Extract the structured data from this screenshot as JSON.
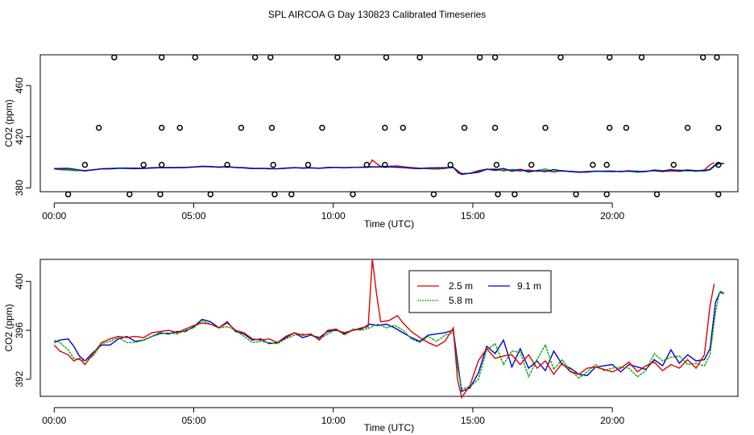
{
  "page_title": "SPL AIRCOA G  Day 130823  Calibrated Timeseries",
  "colors": {
    "red": "#dd0000",
    "green": "#00aa00",
    "blue": "#0000cc"
  },
  "chart_data": [
    {
      "type": "line",
      "name": "top-panel",
      "xlabel": "Time (UTC)",
      "ylabel": "CO2 (ppm)",
      "xlim": [
        -0.5,
        24.5
      ],
      "ylim": [
        377,
        484
      ],
      "xticks": [
        {
          "v": 0,
          "label": "00:00"
        },
        {
          "v": 5,
          "label": "05:00"
        },
        {
          "v": 10,
          "label": "10:00"
        },
        {
          "v": 15,
          "label": "15:00"
        },
        {
          "v": 20,
          "label": "20:00"
        }
      ],
      "yticks": [
        {
          "v": 380,
          "label": "380"
        },
        {
          "v": 420,
          "label": "420"
        },
        {
          "v": 460,
          "label": "460"
        }
      ],
      "circle_levels": [
        375,
        398,
        427,
        482
      ],
      "circle_points": [
        [
          0.5,
          375
        ],
        [
          2.7,
          375
        ],
        [
          3.8,
          375
        ],
        [
          5.6,
          375
        ],
        [
          7.9,
          375
        ],
        [
          8.5,
          375
        ],
        [
          10.7,
          375
        ],
        [
          13.6,
          375
        ],
        [
          15.9,
          375
        ],
        [
          16.5,
          375
        ],
        [
          18.7,
          375
        ],
        [
          19.8,
          375
        ],
        [
          21.6,
          375
        ],
        [
          23.8,
          375
        ],
        [
          1.1,
          398
        ],
        [
          3.2,
          398
        ],
        [
          3.85,
          398
        ],
        [
          6.2,
          398
        ],
        [
          7.85,
          398
        ],
        [
          9.1,
          398
        ],
        [
          11.2,
          398
        ],
        [
          11.85,
          398
        ],
        [
          14.2,
          398
        ],
        [
          15.85,
          398
        ],
        [
          17.1,
          398
        ],
        [
          19.3,
          398
        ],
        [
          19.8,
          398
        ],
        [
          22.2,
          398
        ],
        [
          23.8,
          398
        ],
        [
          1.6,
          427
        ],
        [
          3.85,
          427
        ],
        [
          4.5,
          427
        ],
        [
          6.7,
          427
        ],
        [
          7.8,
          427
        ],
        [
          9.6,
          427
        ],
        [
          11.85,
          427
        ],
        [
          12.5,
          427
        ],
        [
          14.7,
          427
        ],
        [
          15.8,
          427
        ],
        [
          17.6,
          427
        ],
        [
          19.9,
          427
        ],
        [
          20.5,
          427
        ],
        [
          22.7,
          427
        ],
        [
          23.8,
          427
        ],
        [
          2.15,
          482
        ],
        [
          3.85,
          482
        ],
        [
          5.05,
          482
        ],
        [
          7.2,
          482
        ],
        [
          7.75,
          482
        ],
        [
          10.15,
          482
        ],
        [
          11.9,
          482
        ],
        [
          13.1,
          482
        ],
        [
          15.25,
          482
        ],
        [
          15.8,
          482
        ],
        [
          18.15,
          482
        ],
        [
          19.9,
          482
        ],
        [
          21.05,
          482
        ],
        [
          23.25,
          482
        ],
        [
          23.75,
          482
        ]
      ],
      "series": [
        {
          "name": "2.5 m",
          "color": "red"
        },
        {
          "name": "5.8 m",
          "color": "green"
        },
        {
          "name": "9.1 m",
          "color": "blue"
        }
      ]
    },
    {
      "type": "line",
      "name": "bottom-panel",
      "xlabel": "Time (UTC)",
      "ylabel": "CO2 (ppm)",
      "xlim": [
        -0.5,
        24.5
      ],
      "ylim": [
        390.6,
        401.8
      ],
      "xticks": [
        {
          "v": 0,
          "label": "00:00"
        },
        {
          "v": 5,
          "label": "05:00"
        },
        {
          "v": 10,
          "label": "10:00"
        },
        {
          "v": 15,
          "label": "15:00"
        },
        {
          "v": 20,
          "label": "20:00"
        }
      ],
      "yticks": [
        {
          "v": 392,
          "label": "392"
        },
        {
          "v": 396,
          "label": "396"
        },
        {
          "v": 400,
          "label": "400"
        }
      ],
      "legend": {
        "placement": "top-center",
        "entries": [
          {
            "label": "2.5 m",
            "color": "red"
          },
          {
            "label": "9.1 m",
            "color": "blue"
          },
          {
            "label": "5.8 m",
            "color": "green"
          }
        ]
      },
      "series": [
        {
          "name": "9.1 m",
          "color": "blue",
          "x": [
            0,
            0.2,
            0.5,
            0.7,
            0.9,
            1.1,
            1.4,
            1.7,
            2,
            2.3,
            2.6,
            2.9,
            3.2,
            3.5,
            3.8,
            4.1,
            4.4,
            4.7,
            5,
            5.3,
            5.6,
            5.9,
            6.2,
            6.5,
            6.8,
            7.1,
            7.4,
            7.7,
            8,
            8.3,
            8.6,
            8.9,
            9.2,
            9.5,
            9.8,
            10.1,
            10.4,
            10.7,
            11,
            11.3,
            11.6,
            11.9,
            12.2,
            12.5,
            12.8,
            13.1,
            13.4,
            13.7,
            14,
            14.3,
            14.45,
            14.6,
            14.9,
            15.2,
            15.5,
            15.8,
            16.1,
            16.4,
            16.7,
            17,
            17.3,
            17.6,
            17.9,
            18.2,
            18.5,
            18.8,
            19.1,
            19.4,
            19.7,
            20,
            20.3,
            20.6,
            20.9,
            21.2,
            21.5,
            21.8,
            22.1,
            22.4,
            22.7,
            23,
            23.3,
            23.5,
            23.7,
            23.85,
            24
          ],
          "y": [
            395.0,
            395.2,
            395.3,
            394.7,
            393.9,
            393.5,
            394.2,
            394.8,
            394.8,
            395.3,
            395.5,
            395.1,
            395.2,
            395.5,
            395.8,
            395.7,
            395.9,
            395.9,
            396.3,
            396.9,
            396.7,
            396.2,
            396.7,
            395.9,
            395.7,
            395.2,
            395.3,
            394.9,
            395.0,
            395.4,
            395.8,
            395.4,
            395.6,
            395.4,
            395.9,
            396.0,
            395.8,
            396.0,
            396.1,
            396.5,
            396.4,
            396.5,
            396.2,
            395.8,
            395.4,
            395.1,
            395.6,
            395.7,
            395.8,
            396.0,
            393.5,
            391.0,
            391.3,
            392.5,
            394.7,
            394.1,
            395.2,
            393.0,
            394.5,
            392.9,
            393.5,
            392.7,
            394.3,
            393.2,
            392.9,
            392.4,
            392.3,
            393.0,
            393.1,
            393.2,
            392.6,
            393.2,
            393.0,
            392.8,
            393.6,
            393.1,
            394.4,
            393.3,
            394.0,
            393.5,
            393.6,
            394.5,
            398.3,
            399.1,
            399.0
          ]
        },
        {
          "name": "5.8 m",
          "color": "green",
          "x": [
            0,
            0.2,
            0.5,
            0.7,
            0.9,
            1.1,
            1.4,
            1.7,
            2,
            2.3,
            2.6,
            2.9,
            3.2,
            3.5,
            3.8,
            4.1,
            4.4,
            4.7,
            5,
            5.3,
            5.6,
            5.9,
            6.2,
            6.5,
            6.8,
            7.1,
            7.4,
            7.7,
            8,
            8.3,
            8.6,
            8.9,
            9.2,
            9.5,
            9.8,
            10.1,
            10.4,
            10.7,
            11,
            11.3,
            11.6,
            11.9,
            12.2,
            12.5,
            12.8,
            13.1,
            13.4,
            13.7,
            14,
            14.3,
            14.45,
            14.6,
            14.9,
            15.2,
            15.5,
            15.8,
            16.1,
            16.4,
            16.7,
            17,
            17.3,
            17.6,
            17.9,
            18.2,
            18.5,
            18.8,
            19.1,
            19.4,
            19.7,
            20,
            20.3,
            20.6,
            20.9,
            21.2,
            21.5,
            21.8,
            22.1,
            22.4,
            22.7,
            23,
            23.3,
            23.5,
            23.7,
            23.85,
            24
          ],
          "y": [
            395.2,
            395.0,
            394.4,
            393.7,
            393.6,
            393.5,
            393.9,
            394.9,
            395.1,
            395.4,
            395.0,
            395.0,
            395.2,
            395.5,
            395.7,
            395.8,
            395.7,
            396.0,
            396.2,
            396.8,
            396.5,
            396.2,
            396.3,
            396.0,
            395.5,
            395.0,
            395.1,
            395.0,
            394.9,
            395.3,
            395.6,
            395.7,
            395.6,
            395.3,
            395.7,
            396.1,
            395.6,
            396.1,
            396.0,
            396.2,
            396.5,
            396.2,
            396.4,
            396.0,
            395.3,
            395.0,
            395.5,
            395.1,
            395.6,
            395.8,
            393.0,
            391.2,
            391.4,
            392.0,
            394.4,
            394.9,
            393.2,
            394.3,
            394.2,
            392.2,
            393.6,
            394.8,
            392.8,
            393.6,
            392.7,
            392.1,
            392.6,
            393.2,
            392.7,
            392.9,
            393.0,
            392.9,
            392.2,
            392.7,
            394.1,
            393.5,
            393.8,
            393.9,
            393.2,
            393.3,
            393.1,
            394.0,
            397.5,
            399.2,
            399.1
          ]
        },
        {
          "name": "2.5 m",
          "color": "red",
          "x": [
            0,
            0.2,
            0.5,
            0.7,
            0.9,
            1.1,
            1.4,
            1.7,
            2,
            2.3,
            2.6,
            2.9,
            3.2,
            3.5,
            3.8,
            4.1,
            4.4,
            4.7,
            5,
            5.3,
            5.6,
            5.9,
            6.2,
            6.5,
            6.8,
            7.1,
            7.4,
            7.7,
            8,
            8.3,
            8.6,
            8.9,
            9.2,
            9.5,
            9.8,
            10.1,
            10.4,
            10.7,
            11,
            11.25,
            11.4,
            11.55,
            11.7,
            12.0,
            12.3,
            12.5,
            12.8,
            13.1,
            13.4,
            13.7,
            14,
            14.3,
            14.45,
            14.6,
            14.9,
            15.2,
            15.5,
            15.8,
            16.1,
            16.4,
            16.7,
            17,
            17.3,
            17.6,
            17.9,
            18.2,
            18.5,
            18.8,
            19.1,
            19.4,
            19.7,
            20,
            20.3,
            20.6,
            20.9,
            21.2,
            21.5,
            21.8,
            22.1,
            22.4,
            22.7,
            23,
            23.3,
            23.5,
            23.65
          ],
          "y": [
            394.8,
            394.3,
            394.0,
            393.5,
            393.7,
            393.2,
            394.1,
            395.0,
            395.3,
            395.5,
            395.4,
            395.5,
            395.4,
            395.8,
            395.9,
            396.0,
            395.8,
            396.1,
            396.4,
            396.6,
            396.5,
            396.2,
            396.6,
            396.0,
            395.8,
            395.3,
            395.2,
            395.3,
            395.0,
            395.5,
            395.8,
            395.6,
            395.7,
            395.2,
            396.0,
            396.1,
            395.7,
            396.0,
            396.2,
            396.3,
            401.8,
            399.0,
            396.7,
            396.8,
            397.2,
            396.6,
            395.9,
            395.4,
            395.0,
            394.7,
            395.1,
            396.2,
            392.0,
            390.5,
            391.5,
            393.5,
            394.5,
            393.7,
            393.9,
            394.0,
            393.2,
            394.0,
            392.9,
            393.5,
            392.4,
            393.3,
            392.6,
            392.4,
            392.9,
            393.0,
            392.8,
            392.6,
            392.9,
            393.4,
            392.6,
            393.1,
            393.4,
            392.7,
            393.2,
            392.9,
            393.6,
            392.9,
            394.0,
            398.0,
            399.8
          ]
        }
      ]
    }
  ]
}
